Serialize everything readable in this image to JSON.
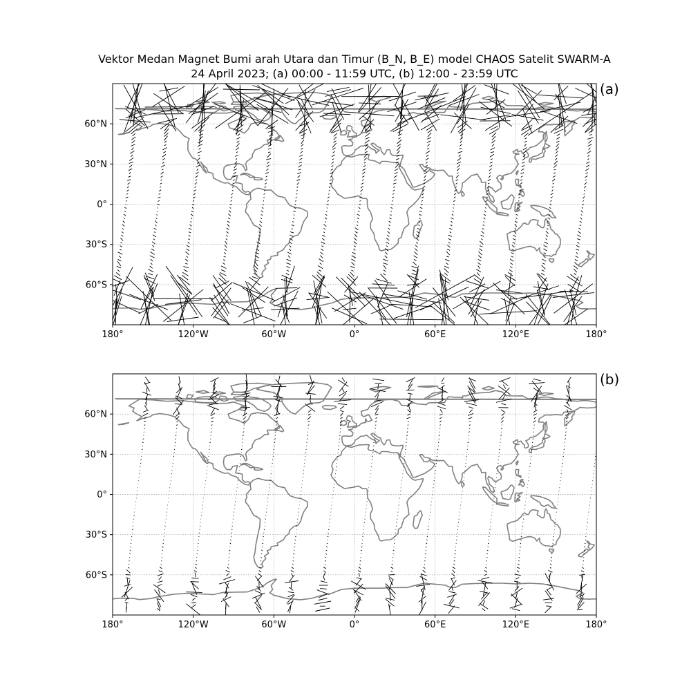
{
  "title": {
    "line1": "Vektor Medan Magnet Bumi arah Utara dan Timur (B_N, B_E) model CHAOS Satelit SWARM-A",
    "line2": "24 April 2023; (a) 00:00 - 11:59 UTC, (b) 12:00 - 23:59 UTC"
  },
  "map": {
    "projection": "plate carree",
    "lon_range": [
      -180,
      180
    ],
    "lat_range": [
      -90,
      90
    ],
    "gridlines": true,
    "coastline_color": "#808080",
    "lon_ticks": [
      {
        "value": -180,
        "label": "180°"
      },
      {
        "value": -120,
        "label": "120°W"
      },
      {
        "value": -60,
        "label": "60°W"
      },
      {
        "value": 0,
        "label": "0°"
      },
      {
        "value": 60,
        "label": "60°E"
      },
      {
        "value": 120,
        "label": "120°E"
      },
      {
        "value": 180,
        "label": "180°"
      }
    ],
    "lat_ticks": [
      {
        "value": 60,
        "label": "60°N"
      },
      {
        "value": 30,
        "label": "30°N"
      },
      {
        "value": 0,
        "label": "0°"
      },
      {
        "value": -30,
        "label": "30°S"
      },
      {
        "value": -60,
        "label": "60°S"
      }
    ]
  },
  "panels": [
    {
      "label": "(a)",
      "time_window": "00:00 - 11:59 UTC",
      "track_longitudes": [
        -170,
        -146,
        -120,
        -92,
        -68,
        -44,
        -20,
        4,
        28,
        50,
        74,
        98,
        122,
        146,
        170
      ],
      "relative_magnitude": 1.0
    },
    {
      "label": "(b)",
      "time_window": "12:00 - 23:59 UTC",
      "track_longitudes": [
        -162,
        -138,
        -112,
        -88,
        -64,
        -40,
        -16,
        10,
        34,
        58,
        80,
        104,
        128,
        152,
        176
      ],
      "relative_magnitude": 0.25
    }
  ]
}
